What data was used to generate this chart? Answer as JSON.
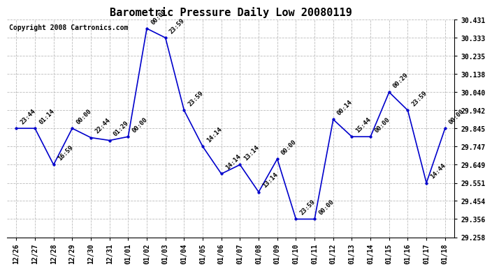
{
  "title": "Barometric Pressure Daily Low 20080119",
  "copyright": "Copyright 2008 Cartronics.com",
  "line_color": "#0000cc",
  "marker_color": "#0000cc",
  "bg_color": "#ffffff",
  "grid_color": "#bbbbbb",
  "x_labels": [
    "12/26",
    "12/27",
    "12/28",
    "12/29",
    "12/30",
    "12/31",
    "01/01",
    "01/02",
    "01/03",
    "01/04",
    "01/05",
    "01/06",
    "01/07",
    "01/08",
    "01/09",
    "01/10",
    "01/11",
    "01/12",
    "01/13",
    "01/14",
    "01/15",
    "01/16",
    "01/17",
    "01/18"
  ],
  "y_values": [
    29.845,
    29.845,
    29.649,
    29.845,
    29.795,
    29.78,
    29.8,
    30.383,
    30.333,
    29.942,
    29.747,
    29.6,
    29.649,
    29.502,
    29.68,
    29.356,
    29.356,
    29.893,
    29.8,
    29.8,
    30.04,
    29.942,
    29.551,
    29.845
  ],
  "point_labels": [
    "23:44",
    "01:14",
    "16:59",
    "00:00",
    "22:44",
    "01:29",
    "00:00",
    "00:00",
    "23:59",
    "23:59",
    "14:14",
    "14:14",
    "13:14",
    "13:14",
    "00:00",
    "23:59",
    "00:00",
    "00:14",
    "15:44",
    "00:00",
    "00:29",
    "23:59",
    "14:44",
    "00:00"
  ],
  "ylim_min": 29.258,
  "ylim_max": 30.431,
  "yticks": [
    29.258,
    29.356,
    29.454,
    29.551,
    29.649,
    29.747,
    29.845,
    29.942,
    30.04,
    30.138,
    30.235,
    30.333,
    30.431
  ],
  "title_fontsize": 11,
  "copyright_fontsize": 7,
  "tick_fontsize": 7,
  "label_fontsize": 6.5
}
